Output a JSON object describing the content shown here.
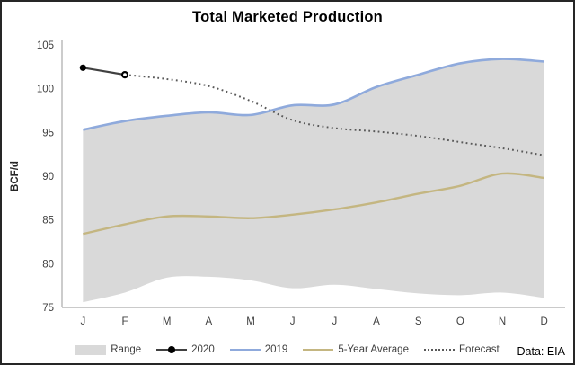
{
  "title": "Total Marketed Production",
  "source_note": "Data: EIA",
  "y_axis": {
    "label": "BCF/d",
    "ticks": [
      75,
      80,
      85,
      90,
      95,
      100,
      105
    ]
  },
  "legend": {
    "items": [
      {
        "label": "Range",
        "swatch": "area",
        "color": "#D9D9D9"
      },
      {
        "label": "2020",
        "swatch": "line-marker",
        "color": "#404040",
        "marker_color": "#000000"
      },
      {
        "label": "2019",
        "swatch": "line",
        "color": "#8FAADC"
      },
      {
        "label": "5-Year Average",
        "swatch": "line",
        "color": "#C4B681"
      },
      {
        "label": "Forecast",
        "swatch": "dotted",
        "color": "#595959"
      }
    ]
  },
  "chart_data": {
    "type": "line",
    "title": "Total Marketed Production",
    "xlabel": "",
    "ylabel": "BCF/d",
    "ylim": [
      75,
      105
    ],
    "grid": false,
    "legend_position": "bottom",
    "categories": [
      "J",
      "F",
      "M",
      "A",
      "M",
      "J",
      "J",
      "A",
      "S",
      "O",
      "N",
      "D"
    ],
    "series": [
      {
        "name": "Range",
        "type": "band",
        "color": "#D9D9D9",
        "lower": [
          75.6,
          76.7,
          78.4,
          78.5,
          78.1,
          77.2,
          77.6,
          77.1,
          76.6,
          76.4,
          76.7,
          76.1
        ],
        "upper": [
          95.3,
          96.3,
          96.9,
          97.3,
          97.0,
          98.1,
          98.2,
          100.2,
          101.6,
          102.9,
          103.4,
          103.1
        ]
      },
      {
        "name": "2020",
        "type": "line",
        "color": "#404040",
        "markers": true,
        "marker_color": "#000000",
        "values": [
          102.4,
          101.6
        ]
      },
      {
        "name": "2019",
        "type": "line",
        "color": "#8FAADC",
        "values": [
          95.3,
          96.3,
          96.9,
          97.3,
          97.0,
          98.1,
          98.2,
          100.2,
          101.6,
          102.9,
          103.4,
          103.1
        ]
      },
      {
        "name": "5-Year Average",
        "type": "line",
        "color": "#C4B681",
        "values": [
          83.4,
          84.5,
          85.4,
          85.4,
          85.2,
          85.6,
          86.2,
          87.0,
          88.0,
          88.9,
          90.3,
          89.8
        ]
      },
      {
        "name": "Forecast",
        "type": "dotted-line",
        "color": "#595959",
        "values": [
          null,
          101.6,
          101.1,
          100.3,
          98.6,
          96.4,
          95.5,
          95.1,
          94.6,
          93.9,
          93.2,
          92.4
        ]
      }
    ]
  }
}
